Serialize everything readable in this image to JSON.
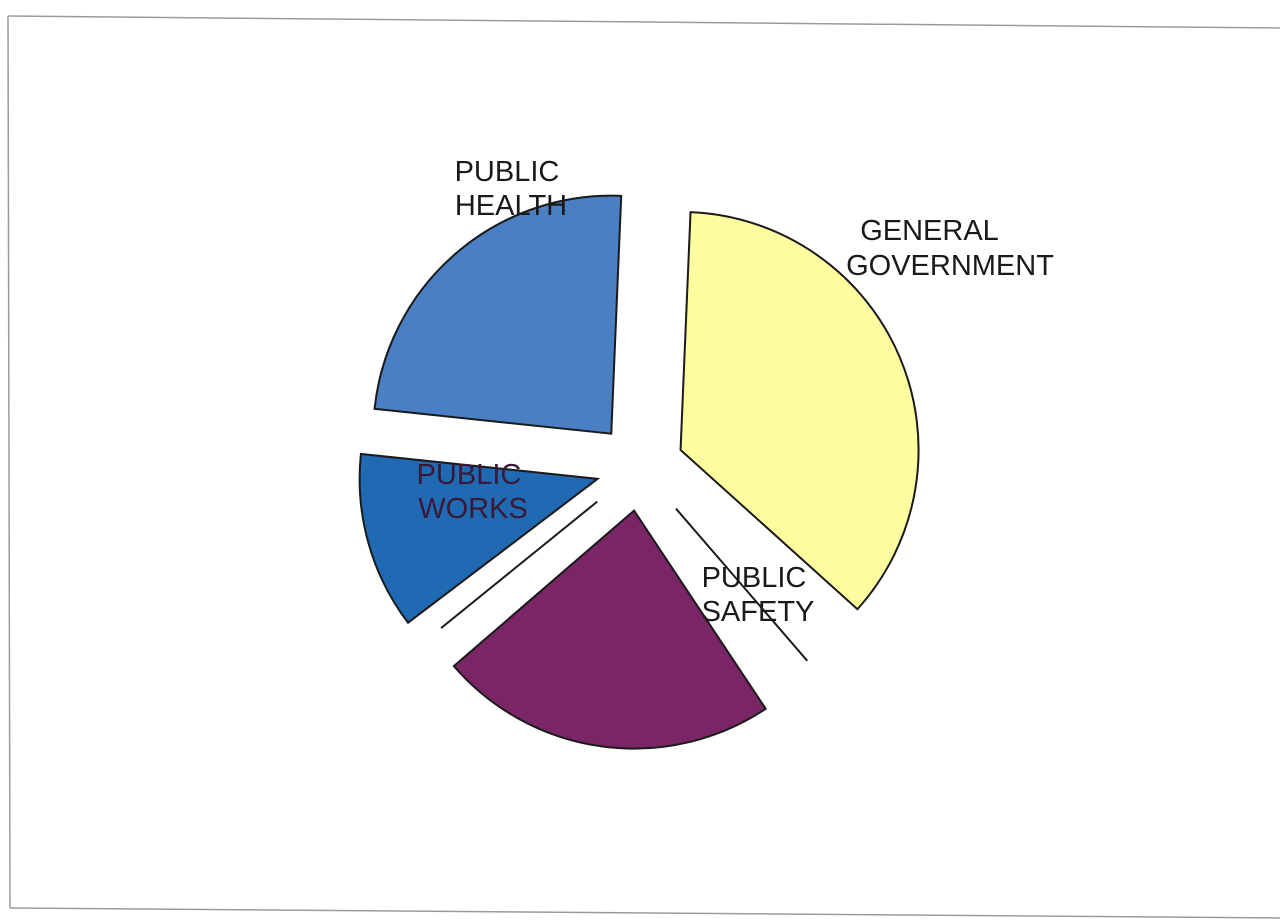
{
  "chart_data": {
    "type": "pie",
    "exploded": true,
    "slices": [
      {
        "key": "general_government",
        "label_lines": [
          "GENERAL",
          "GOVERNMENT"
        ],
        "value": 24,
        "color": "#4a7fc4"
      },
      {
        "key": "public_safety",
        "label_lines": [
          "PUBLIC",
          "SAFETY"
        ],
        "value": 36,
        "color": "#fdfda0"
      },
      {
        "key": "gap_1",
        "label_lines": [],
        "value": 4,
        "color": "none"
      },
      {
        "key": "public_works",
        "label_lines": [
          "PUBLIC",
          "WORKS"
        ],
        "value": 23,
        "color": "#7a2566"
      },
      {
        "key": "gap_2",
        "label_lines": [],
        "value": 1,
        "color": "none"
      },
      {
        "key": "public_health",
        "label_lines": [
          "PUBLIC",
          "HEALTH"
        ],
        "value": 12,
        "color": "#1f6ab2"
      }
    ]
  }
}
